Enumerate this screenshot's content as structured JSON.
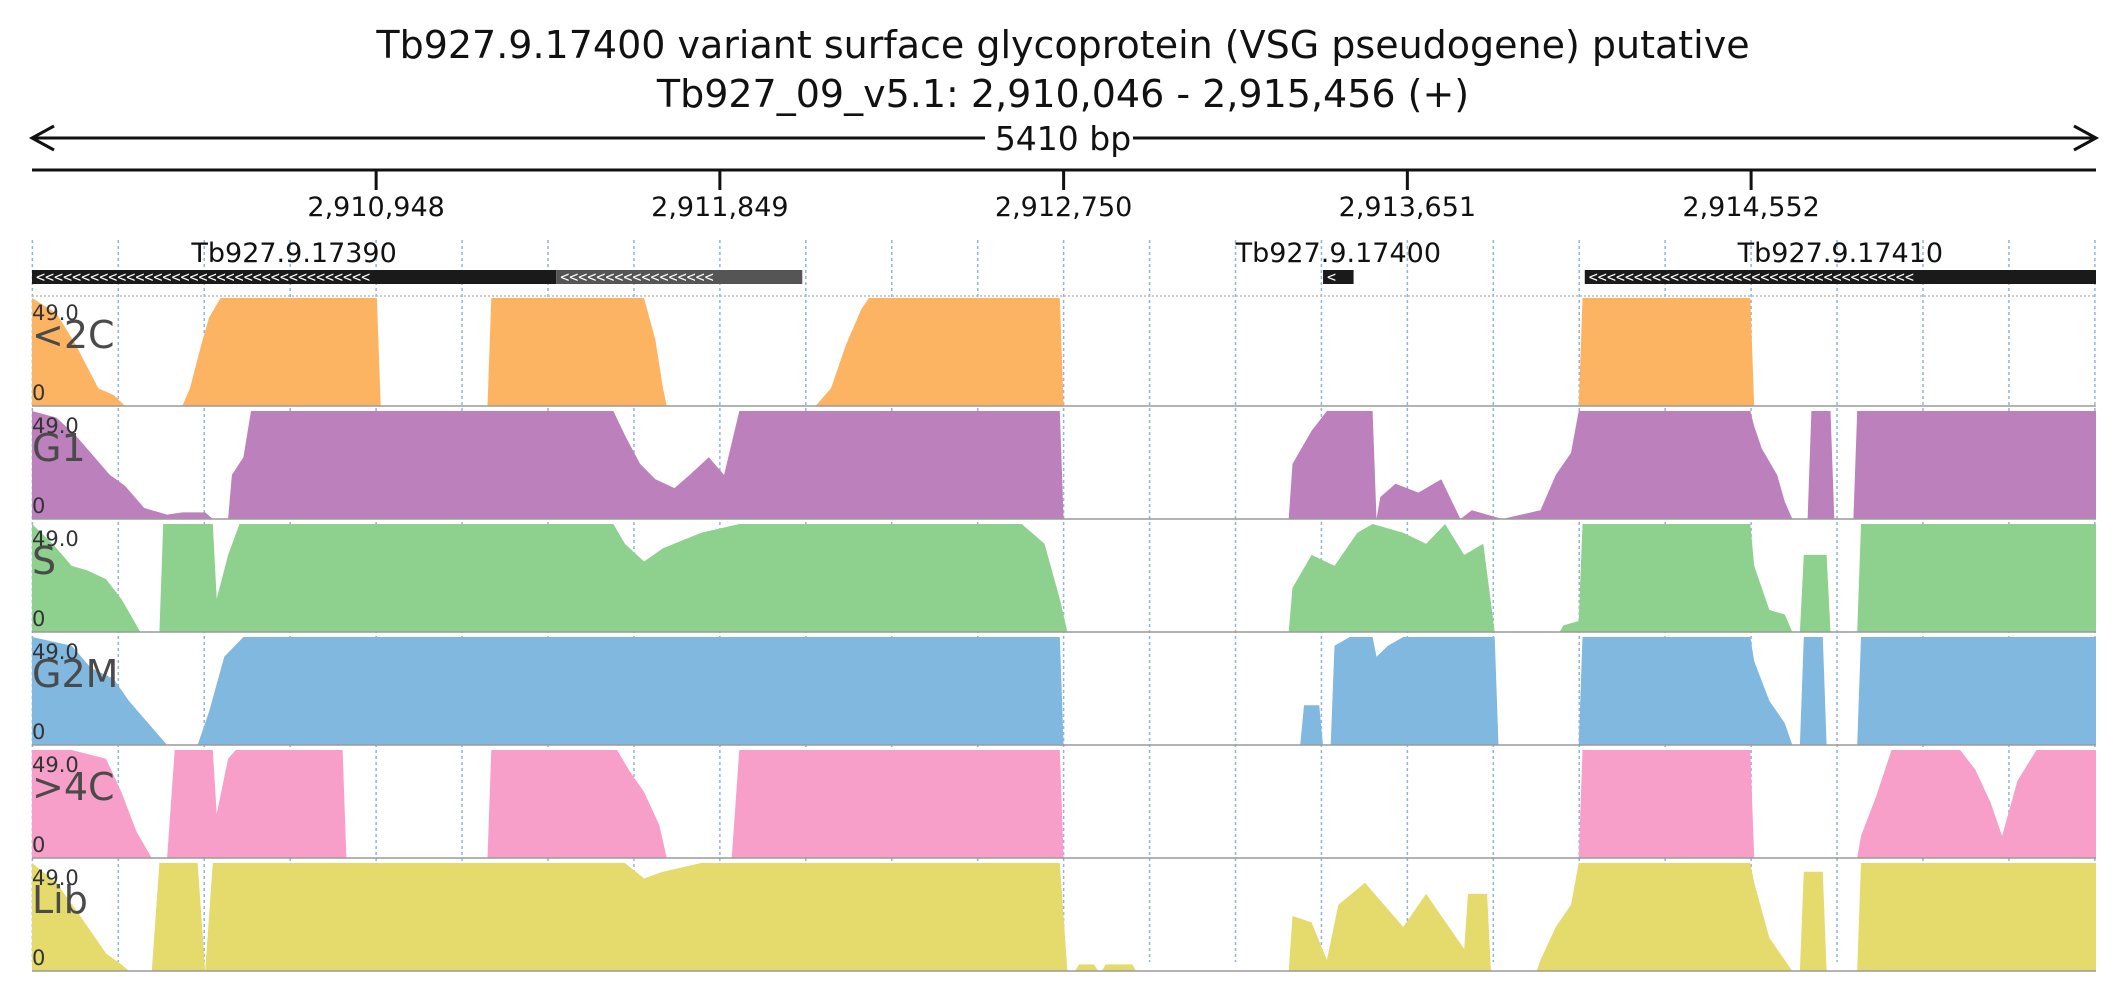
{
  "chart_data": {
    "type": "area",
    "title": "Tb927.9.17400  variant surface glycoprotein (VSG  pseudogene)  putative",
    "subtitle": "Tb927_09_v5.1: 2,910,046 - 2,915,456 (+)",
    "span_label": "5410 bp",
    "xlim": [
      2910046,
      2915456
    ],
    "x_ticks": [
      {
        "value": 2910948,
        "label": "2,910,948"
      },
      {
        "value": 2911849,
        "label": "2,911,849"
      },
      {
        "value": 2912750,
        "label": "2,912,750"
      },
      {
        "value": 2913651,
        "label": "2,913,651"
      },
      {
        "value": 2914552,
        "label": "2,914,552"
      }
    ],
    "genes": [
      {
        "name": "Tb927.9.17390",
        "start": 2910046,
        "end": 2911420,
        "strand": "-",
        "color": "#1a1a1a"
      },
      {
        "name": "",
        "start": 2911420,
        "end": 2912065,
        "strand": "-",
        "color": "#555555"
      },
      {
        "name": "Tb927.9.17400",
        "start": 2913430,
        "end": 2913510,
        "strand": "-",
        "color": "#1a1a1a"
      },
      {
        "name": "Tb927.9.17410",
        "start": 2914116,
        "end": 2915575,
        "strand": "-",
        "color": "#1a1a1a"
      }
    ],
    "ylim": [
      0,
      49.0
    ],
    "ymax_label": "49.0",
    "ymin_label": "0",
    "series": [
      {
        "name": "<2C",
        "color": "#fdb462",
        "points": [
          [
            2910046,
            49
          ],
          [
            2910110,
            42
          ],
          [
            2910160,
            28
          ],
          [
            2910190,
            18
          ],
          [
            2910220,
            8
          ],
          [
            2910260,
            5
          ],
          [
            2910290,
            0
          ],
          [
            2910440,
            0
          ],
          [
            2910460,
            8
          ],
          [
            2910490,
            28
          ],
          [
            2910510,
            40
          ],
          [
            2910540,
            49
          ],
          [
            2910950,
            49
          ],
          [
            2910960,
            0
          ],
          [
            2911240,
            0
          ],
          [
            2911250,
            49
          ],
          [
            2911650,
            49
          ],
          [
            2911680,
            30
          ],
          [
            2911700,
            8
          ],
          [
            2911710,
            0
          ],
          [
            2912100,
            0
          ],
          [
            2912140,
            8
          ],
          [
            2912180,
            28
          ],
          [
            2912220,
            44
          ],
          [
            2912240,
            49
          ],
          [
            2912740,
            49
          ],
          [
            2912750,
            0
          ],
          [
            2914100,
            0
          ],
          [
            2914110,
            49
          ],
          [
            2914550,
            49
          ],
          [
            2914560,
            0
          ],
          [
            2915456,
            0
          ]
        ]
      },
      {
        "name": "G1",
        "color": "#bc80bd",
        "points": [
          [
            2910046,
            49
          ],
          [
            2910110,
            46
          ],
          [
            2910160,
            38
          ],
          [
            2910200,
            30
          ],
          [
            2910250,
            20
          ],
          [
            2910290,
            15
          ],
          [
            2910340,
            5
          ],
          [
            2910400,
            2
          ],
          [
            2910440,
            3
          ],
          [
            2910500,
            3
          ],
          [
            2910520,
            0
          ],
          [
            2910560,
            0
          ],
          [
            2910570,
            20
          ],
          [
            2910600,
            28
          ],
          [
            2910620,
            49
          ],
          [
            2911570,
            49
          ],
          [
            2911600,
            38
          ],
          [
            2911640,
            25
          ],
          [
            2911680,
            18
          ],
          [
            2911730,
            14
          ],
          [
            2911770,
            20
          ],
          [
            2911820,
            28
          ],
          [
            2911860,
            20
          ],
          [
            2911900,
            49
          ],
          [
            2912740,
            49
          ],
          [
            2912750,
            0
          ],
          [
            2913340,
            0
          ],
          [
            2913350,
            25
          ],
          [
            2913400,
            40
          ],
          [
            2913440,
            49
          ],
          [
            2913560,
            49
          ],
          [
            2913570,
            0
          ],
          [
            2913580,
            10
          ],
          [
            2913620,
            16
          ],
          [
            2913680,
            12
          ],
          [
            2913740,
            18
          ],
          [
            2913790,
            0
          ],
          [
            2913820,
            4
          ],
          [
            2913860,
            2
          ],
          [
            2913900,
            0
          ],
          [
            2914000,
            4
          ],
          [
            2914040,
            20
          ],
          [
            2914080,
            30
          ],
          [
            2914100,
            49
          ],
          [
            2914550,
            49
          ],
          [
            2914560,
            42
          ],
          [
            2914580,
            32
          ],
          [
            2914620,
            20
          ],
          [
            2914640,
            8
          ],
          [
            2914660,
            0
          ],
          [
            2914700,
            0
          ],
          [
            2914710,
            49
          ],
          [
            2914760,
            49
          ],
          [
            2914770,
            0
          ],
          [
            2914820,
            0
          ],
          [
            2914830,
            49
          ],
          [
            2915456,
            49
          ]
        ]
      },
      {
        "name": "S",
        "color": "#8ed18e",
        "points": [
          [
            2910046,
            49
          ],
          [
            2910100,
            40
          ],
          [
            2910150,
            30
          ],
          [
            2910190,
            28
          ],
          [
            2910240,
            24
          ],
          [
            2910280,
            15
          ],
          [
            2910330,
            0
          ],
          [
            2910380,
            0
          ],
          [
            2910390,
            49
          ],
          [
            2910520,
            49
          ],
          [
            2910530,
            15
          ],
          [
            2910560,
            35
          ],
          [
            2910590,
            49
          ],
          [
            2911570,
            49
          ],
          [
            2911600,
            40
          ],
          [
            2911650,
            32
          ],
          [
            2911700,
            38
          ],
          [
            2911800,
            45
          ],
          [
            2911900,
            49
          ],
          [
            2912640,
            49
          ],
          [
            2912700,
            40
          ],
          [
            2912740,
            15
          ],
          [
            2912760,
            0
          ],
          [
            2913340,
            0
          ],
          [
            2913350,
            20
          ],
          [
            2913400,
            35
          ],
          [
            2913460,
            30
          ],
          [
            2913520,
            45
          ],
          [
            2913560,
            49
          ],
          [
            2913640,
            45
          ],
          [
            2913700,
            40
          ],
          [
            2913750,
            49
          ],
          [
            2913800,
            35
          ],
          [
            2913850,
            40
          ],
          [
            2913880,
            0
          ],
          [
            2914050,
            0
          ],
          [
            2914060,
            3
          ],
          [
            2914100,
            5
          ],
          [
            2914110,
            49
          ],
          [
            2914550,
            49
          ],
          [
            2914560,
            30
          ],
          [
            2914600,
            10
          ],
          [
            2914640,
            8
          ],
          [
            2914660,
            0
          ],
          [
            2914680,
            0
          ],
          [
            2914690,
            35
          ],
          [
            2914750,
            35
          ],
          [
            2914760,
            0
          ],
          [
            2914830,
            0
          ],
          [
            2914840,
            49
          ],
          [
            2915456,
            49
          ]
        ]
      },
      {
        "name": "G2M",
        "color": "#80b8e0",
        "points": [
          [
            2910046,
            49
          ],
          [
            2910150,
            45
          ],
          [
            2910200,
            35
          ],
          [
            2910260,
            30
          ],
          [
            2910300,
            20
          ],
          [
            2910360,
            8
          ],
          [
            2910400,
            0
          ],
          [
            2910480,
            0
          ],
          [
            2910510,
            15
          ],
          [
            2910550,
            40
          ],
          [
            2910600,
            49
          ],
          [
            2912740,
            49
          ],
          [
            2912750,
            0
          ],
          [
            2913370,
            0
          ],
          [
            2913380,
            18
          ],
          [
            2913420,
            18
          ],
          [
            2913430,
            0
          ],
          [
            2913450,
            0
          ],
          [
            2913460,
            45
          ],
          [
            2913500,
            49
          ],
          [
            2913560,
            49
          ],
          [
            2913570,
            40
          ],
          [
            2913600,
            45
          ],
          [
            2913640,
            49
          ],
          [
            2913880,
            49
          ],
          [
            2913890,
            0
          ],
          [
            2914100,
            0
          ],
          [
            2914110,
            49
          ],
          [
            2914550,
            49
          ],
          [
            2914560,
            38
          ],
          [
            2914600,
            20
          ],
          [
            2914640,
            10
          ],
          [
            2914660,
            0
          ],
          [
            2914680,
            0
          ],
          [
            2914690,
            49
          ],
          [
            2914740,
            49
          ],
          [
            2914750,
            0
          ],
          [
            2914830,
            0
          ],
          [
            2914840,
            49
          ],
          [
            2915456,
            49
          ]
        ]
      },
      {
        "name": ">4C",
        "color": "#f79fc9",
        "points": [
          [
            2910046,
            49
          ],
          [
            2910150,
            49
          ],
          [
            2910240,
            45
          ],
          [
            2910280,
            30
          ],
          [
            2910320,
            12
          ],
          [
            2910360,
            0
          ],
          [
            2910400,
            0
          ],
          [
            2910420,
            49
          ],
          [
            2910520,
            49
          ],
          [
            2910530,
            20
          ],
          [
            2910560,
            45
          ],
          [
            2910580,
            49
          ],
          [
            2910860,
            49
          ],
          [
            2910870,
            0
          ],
          [
            2911240,
            0
          ],
          [
            2911250,
            49
          ],
          [
            2911580,
            49
          ],
          [
            2911610,
            40
          ],
          [
            2911650,
            30
          ],
          [
            2911690,
            15
          ],
          [
            2911710,
            0
          ],
          [
            2911880,
            0
          ],
          [
            2911900,
            49
          ],
          [
            2912740,
            49
          ],
          [
            2912750,
            0
          ],
          [
            2914100,
            0
          ],
          [
            2914110,
            49
          ],
          [
            2914550,
            49
          ],
          [
            2914560,
            0
          ],
          [
            2914830,
            0
          ],
          [
            2914840,
            10
          ],
          [
            2914880,
            28
          ],
          [
            2914920,
            49
          ],
          [
            2915100,
            49
          ],
          [
            2915140,
            40
          ],
          [
            2915180,
            25
          ],
          [
            2915210,
            10
          ],
          [
            2915250,
            35
          ],
          [
            2915300,
            49
          ],
          [
            2915456,
            49
          ]
        ]
      },
      {
        "name": "Lib",
        "color": "#e5da6c",
        "points": [
          [
            2910046,
            49
          ],
          [
            2910110,
            40
          ],
          [
            2910160,
            28
          ],
          [
            2910200,
            18
          ],
          [
            2910240,
            8
          ],
          [
            2910280,
            3
          ],
          [
            2910300,
            0
          ],
          [
            2910360,
            0
          ],
          [
            2910380,
            49
          ],
          [
            2910480,
            49
          ],
          [
            2910500,
            0
          ],
          [
            2910520,
            49
          ],
          [
            2911600,
            49
          ],
          [
            2911650,
            42
          ],
          [
            2911700,
            45
          ],
          [
            2911800,
            49
          ],
          [
            2912740,
            49
          ],
          [
            2912760,
            0
          ],
          [
            2912780,
            0
          ],
          [
            2912790,
            3
          ],
          [
            2912830,
            3
          ],
          [
            2912840,
            0
          ],
          [
            2912850,
            0
          ],
          [
            2912860,
            3
          ],
          [
            2912930,
            3
          ],
          [
            2912940,
            0
          ],
          [
            2913340,
            0
          ],
          [
            2913350,
            25
          ],
          [
            2913400,
            22
          ],
          [
            2913440,
            5
          ],
          [
            2913470,
            30
          ],
          [
            2913540,
            40
          ],
          [
            2913590,
            30
          ],
          [
            2913640,
            20
          ],
          [
            2913700,
            35
          ],
          [
            2913760,
            20
          ],
          [
            2913800,
            10
          ],
          [
            2913810,
            35
          ],
          [
            2913860,
            35
          ],
          [
            2913870,
            0
          ],
          [
            2913990,
            0
          ],
          [
            2914000,
            5
          ],
          [
            2914040,
            20
          ],
          [
            2914080,
            30
          ],
          [
            2914100,
            49
          ],
          [
            2914550,
            49
          ],
          [
            2914560,
            40
          ],
          [
            2914600,
            15
          ],
          [
            2914640,
            5
          ],
          [
            2914660,
            0
          ],
          [
            2914680,
            0
          ],
          [
            2914690,
            45
          ],
          [
            2914740,
            45
          ],
          [
            2914750,
            0
          ],
          [
            2914830,
            0
          ],
          [
            2914840,
            49
          ],
          [
            2915456,
            49
          ]
        ]
      }
    ]
  }
}
